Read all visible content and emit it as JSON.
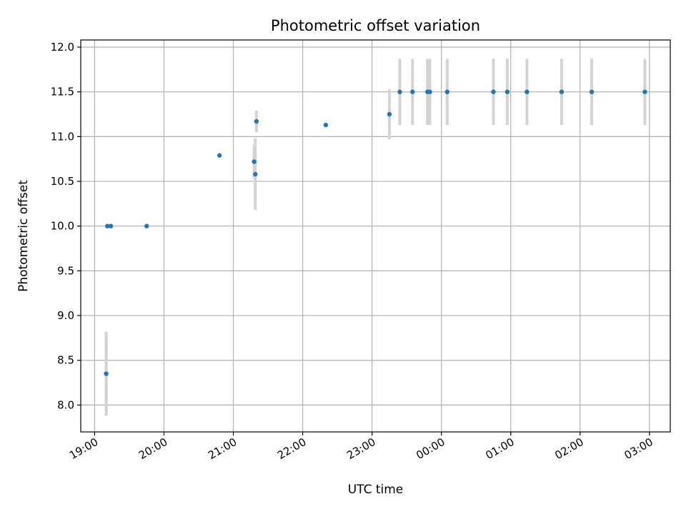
{
  "chart_data": {
    "type": "scatter",
    "title": "Photometric offset variation",
    "xlabel": "UTC time",
    "ylabel": "Photometric offset",
    "x_axis_kind": "time",
    "x_tick_labels": [
      "19:00",
      "20:00",
      "21:00",
      "22:00",
      "23:00",
      "00:00",
      "01:00",
      "02:00",
      "03:00"
    ],
    "xlim": [
      "18:48",
      "03:18"
    ],
    "y_ticks": [
      8.0,
      8.5,
      9.0,
      9.5,
      10.0,
      10.5,
      11.0,
      11.5,
      12.0
    ],
    "y_tick_labels": [
      "8.0",
      "8.5",
      "9.0",
      "9.5",
      "10.0",
      "10.5",
      "11.0",
      "11.5",
      "12.0"
    ],
    "ylim": [
      7.7,
      12.08
    ],
    "grid": true,
    "colors": {
      "points": "#1f77b4",
      "errorbars": "#d3d3d3",
      "grid": "#b0b0b0"
    },
    "points": [
      {
        "time": "19:10",
        "y": 8.35,
        "yerr": 0.47
      },
      {
        "time": "19:11",
        "y": 10.0,
        "yerr": 0
      },
      {
        "time": "19:14",
        "y": 10.0,
        "yerr": 0
      },
      {
        "time": "19:45",
        "y": 10.0,
        "yerr": 0
      },
      {
        "time": "20:48",
        "y": 10.79,
        "yerr": 0
      },
      {
        "time": "21:18",
        "y": 10.72,
        "yerr": 0.19
      },
      {
        "time": "21:19",
        "y": 10.58,
        "yerr": 0.4
      },
      {
        "time": "21:20",
        "y": 11.17,
        "yerr": 0.12
      },
      {
        "time": "22:20",
        "y": 11.13,
        "yerr": 0
      },
      {
        "time": "23:15",
        "y": 11.25,
        "yerr": 0.28
      },
      {
        "time": "23:24",
        "y": 11.5,
        "yerr": 0.37
      },
      {
        "time": "23:35",
        "y": 11.5,
        "yerr": 0.37
      },
      {
        "time": "23:48",
        "y": 11.5,
        "yerr": 0.37
      },
      {
        "time": "23:50",
        "y": 11.5,
        "yerr": 0.37
      },
      {
        "time": "00:05",
        "y": 11.5,
        "yerr": 0.37
      },
      {
        "time": "00:45",
        "y": 11.5,
        "yerr": 0.37
      },
      {
        "time": "00:57",
        "y": 11.5,
        "yerr": 0.37
      },
      {
        "time": "01:14",
        "y": 11.5,
        "yerr": 0.37
      },
      {
        "time": "01:44",
        "y": 11.5,
        "yerr": 0.37
      },
      {
        "time": "02:10",
        "y": 11.5,
        "yerr": 0.37
      },
      {
        "time": "02:56",
        "y": 11.5,
        "yerr": 0.37
      }
    ]
  }
}
